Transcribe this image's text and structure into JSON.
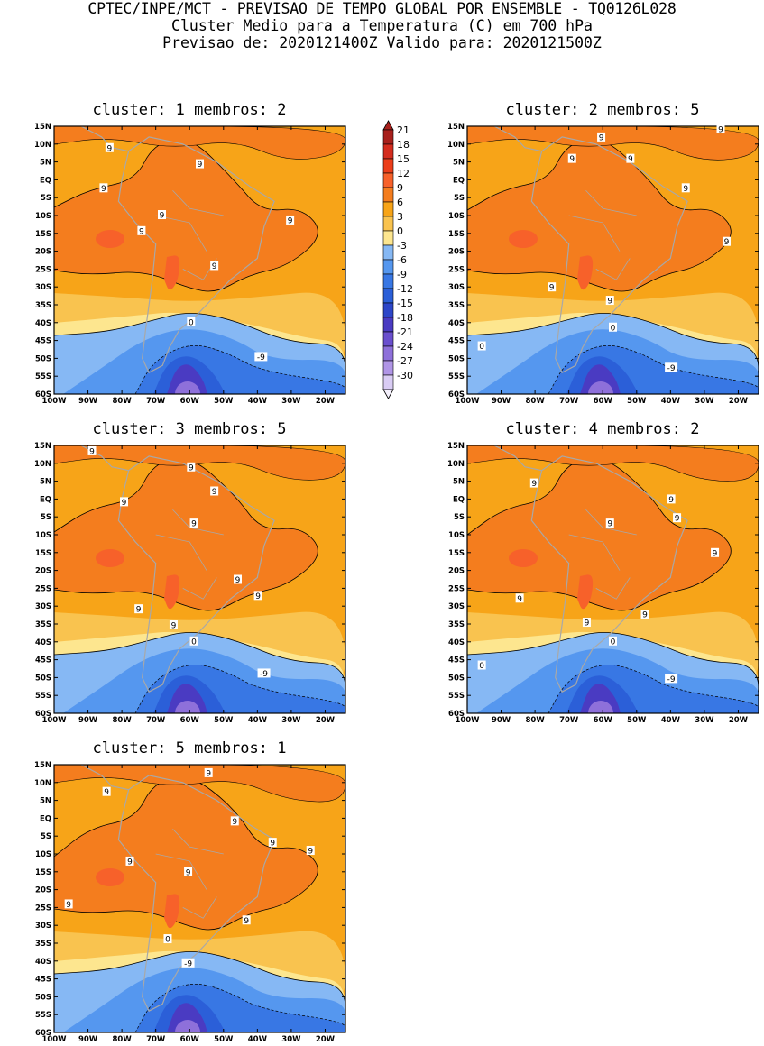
{
  "header": {
    "line1": "CPTEC/INPE/MCT - PREVISAO DE TEMPO GLOBAL POR ENSEMBLE - TQ0126L028",
    "line2": "Cluster Medio para a Temperatura (C) em 700 hPa",
    "line3": "Previsao de: 2020121400Z   Valido para: 2020121500Z"
  },
  "axes": {
    "lat_labels": [
      "15N",
      "10N",
      "5N",
      "EQ",
      "5S",
      "10S",
      "15S",
      "20S",
      "25S",
      "30S",
      "35S",
      "40S",
      "45S",
      "50S",
      "55S",
      "60S"
    ],
    "lon_labels": [
      "100W",
      "90W",
      "80W",
      "70W",
      "60W",
      "50W",
      "40W",
      "30W",
      "20W"
    ]
  },
  "colorbar": {
    "levels": [
      "21",
      "18",
      "15",
      "12",
      "9",
      "6",
      "3",
      "0",
      "-3",
      "-6",
      "-9",
      "-12",
      "-15",
      "-18",
      "-21",
      "-24",
      "-27",
      "-30"
    ],
    "colors": [
      "#a8201c",
      "#d42c1e",
      "#ec3e1a",
      "#f7612a",
      "#f47d1e",
      "#f7a418",
      "#f9c34f",
      "#fde68f",
      "#86b8f4",
      "#5597ef",
      "#3877e4",
      "#2b5fd8",
      "#2d46c8",
      "#4a3bc2",
      "#6a4fce",
      "#8e70da",
      "#b095e6",
      "#d9ccf4"
    ]
  },
  "panels": [
    {
      "title": "cluster: 1   membros: 2",
      "cluster": 1,
      "members": 2,
      "labels": [
        "9",
        "9",
        "9",
        "9",
        "9",
        "9",
        "9",
        "0",
        "-9"
      ]
    },
    {
      "title": "cluster: 2   membros: 5",
      "cluster": 2,
      "members": 5,
      "labels": [
        "9",
        "9",
        "9",
        "9",
        "9",
        "9",
        "9",
        "9",
        "0",
        "0",
        "-9"
      ]
    },
    {
      "title": "cluster: 3   membros: 5",
      "cluster": 3,
      "members": 5,
      "labels": [
        "9",
        "9",
        "9",
        "9",
        "9",
        "9",
        "9",
        "9",
        "9",
        "0",
        "-9"
      ]
    },
    {
      "title": "cluster: 4   membros: 2",
      "cluster": 4,
      "members": 2,
      "labels": [
        "9",
        "9",
        "9",
        "9",
        "9",
        "9",
        "9",
        "9",
        "0",
        "0",
        "-9"
      ]
    },
    {
      "title": "cluster: 5   membros: 1",
      "cluster": 5,
      "members": 1,
      "labels": [
        "9",
        "9",
        "9",
        "9",
        "9",
        "9",
        "9",
        "9",
        "9",
        "0",
        "-9"
      ]
    }
  ]
}
